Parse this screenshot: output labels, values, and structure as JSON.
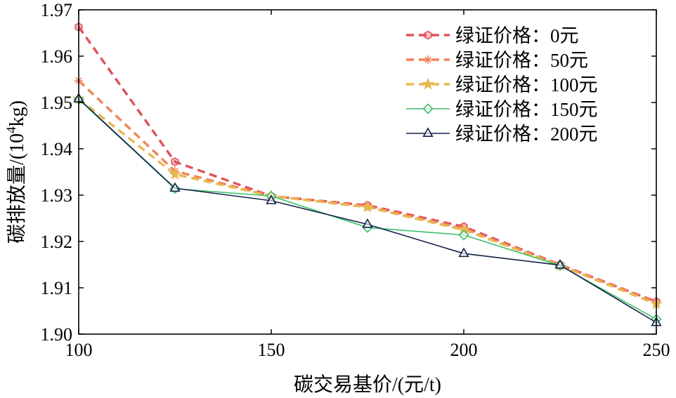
{
  "chart_data": {
    "type": "line",
    "xlabel": "碳交易基价/(元/t)",
    "ylabel": {
      "main": "碳排放量/(10",
      "sup": "4",
      "tail": "kg)"
    },
    "xlim": [
      100,
      250
    ],
    "ylim": [
      1.9,
      1.97
    ],
    "xticks": [
      100,
      150,
      200,
      250
    ],
    "xtick_labels": [
      "100",
      "150",
      "200",
      "250"
    ],
    "yticks": [
      1.9,
      1.91,
      1.92,
      1.93,
      1.94,
      1.95,
      1.96,
      1.97
    ],
    "ytick_labels": [
      "1.90",
      "1.91",
      "1.92",
      "1.93",
      "1.94",
      "1.95",
      "1.96",
      "1.97"
    ],
    "x": [
      100,
      125,
      150,
      175,
      200,
      225,
      250
    ],
    "grid": false,
    "legend_position": "top-right",
    "series": [
      {
        "name": "绿证价格：0元",
        "color": "#e0505a",
        "dash": "dashed",
        "marker": "hexagon",
        "values": [
          1.9663,
          1.9372,
          1.9298,
          1.9278,
          1.9232,
          1.915,
          1.907
        ]
      },
      {
        "name": "绿证价格：50元",
        "color": "#f0845a",
        "dash": "dashed",
        "marker": "asterisk",
        "values": [
          1.9547,
          1.9352,
          1.9298,
          1.9276,
          1.9228,
          1.9149,
          1.9069
        ]
      },
      {
        "name": "绿证价格：100元",
        "color": "#e8b850",
        "dash": "dashed",
        "marker": "star",
        "values": [
          1.9508,
          1.9345,
          1.9298,
          1.9274,
          1.9225,
          1.9148,
          1.9065
        ]
      },
      {
        "name": "绿证价格：150元",
        "color": "#3cc06a",
        "dash": "solid",
        "marker": "diamond",
        "values": [
          1.9507,
          1.9314,
          1.9298,
          1.923,
          1.9214,
          1.9148,
          1.9032
        ]
      },
      {
        "name": "绿证价格：200元",
        "color": "#14204a",
        "dash": "solid",
        "marker": "triangle",
        "values": [
          1.9508,
          1.9315,
          1.9288,
          1.9237,
          1.9174,
          1.9149,
          1.9025
        ]
      }
    ]
  }
}
